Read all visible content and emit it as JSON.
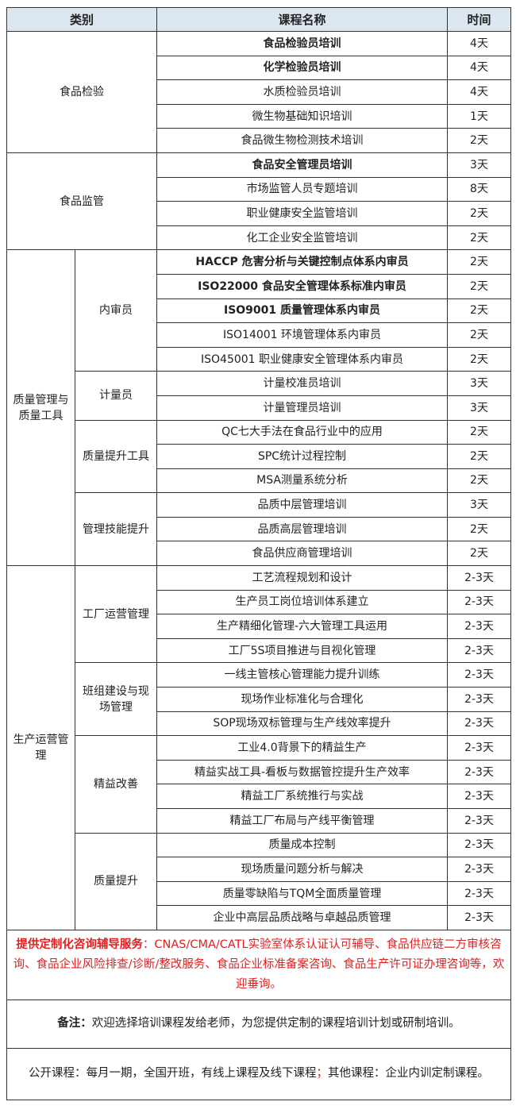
{
  "header": {
    "category": "类别",
    "course": "课程名称",
    "time": "时间"
  },
  "groups": [
    {
      "name": "食品检验",
      "subs": [
        {
          "name": "",
          "courses": [
            {
              "title": "食品检验员培训",
              "time": "4天",
              "bold": true
            },
            {
              "title": "化学检验员培训",
              "time": "4天",
              "bold": true
            },
            {
              "title": "水质检验员培训",
              "time": "4天"
            },
            {
              "title": "微生物基础知识培训",
              "time": "1天"
            },
            {
              "title": "食品微生物检测技术培训",
              "time": "2天"
            }
          ]
        }
      ]
    },
    {
      "name": "食品监管",
      "subs": [
        {
          "name": "",
          "courses": [
            {
              "title": "食品安全管理员培训",
              "time": "3天",
              "bold": true
            },
            {
              "title": "市场监管人员专题培训",
              "time": "8天"
            },
            {
              "title": "职业健康安全监管培训",
              "time": "2天"
            },
            {
              "title": "化工企业安全监管培训",
              "time": "2天"
            }
          ]
        }
      ]
    },
    {
      "name": "质量管理与质量工具",
      "subs": [
        {
          "name": "内审员",
          "courses": [
            {
              "title": "HACCP 危害分析与关键控制点体系内审员",
              "time": "2天",
              "bold": true
            },
            {
              "title": "ISO22000 食品安全管理体系标准内审员",
              "time": "2天",
              "bold": true
            },
            {
              "title": "ISO9001 质量管理体系内审员",
              "time": "2天",
              "bold": true
            },
            {
              "title": "ISO14001 环境管理体系内审员",
              "time": "2天"
            },
            {
              "title": "ISO45001 职业健康安全管理体系内审员",
              "time": "2天"
            }
          ]
        },
        {
          "name": "计量员",
          "courses": [
            {
              "title": "计量校准员培训",
              "time": "3天"
            },
            {
              "title": "计量管理员培训",
              "time": "3天"
            }
          ]
        },
        {
          "name": "质量提升工具",
          "courses": [
            {
              "title": "QC七大手法在食品行业中的应用",
              "time": "2天"
            },
            {
              "title": "SPC统计过程控制",
              "time": "2天"
            },
            {
              "title": "MSA测量系统分析",
              "time": "2天"
            }
          ]
        },
        {
          "name": "管理技能提升",
          "courses": [
            {
              "title": "品质中层管理培训",
              "time": "3天"
            },
            {
              "title": "品质高层管理培训",
              "time": "2天"
            },
            {
              "title": "食品供应商管理培训",
              "time": "2天"
            }
          ]
        }
      ]
    },
    {
      "name": "生产运营管理",
      "subs": [
        {
          "name": "工厂运营管理",
          "courses": [
            {
              "title": "工艺流程规划和设计",
              "time": "2-3天"
            },
            {
              "title": "生产员工岗位培训体系建立",
              "time": "2-3天"
            },
            {
              "title": "生产精细化管理-六大管理工具运用",
              "time": "2-3天"
            },
            {
              "title": "工厂5S项目推进与目视化管理",
              "time": "2-3天"
            }
          ]
        },
        {
          "name": "班组建设与现场管理",
          "courses": [
            {
              "title": "一线主管核心管理能力提升训练",
              "time": "2-3天"
            },
            {
              "title": "现场作业标准化与合理化",
              "time": "2-3天"
            },
            {
              "title": "SOP现场双标管理与生产线效率提升",
              "time": "2-3天"
            }
          ]
        },
        {
          "name": "精益改善",
          "courses": [
            {
              "title": "工业4.0背景下的精益生产",
              "time": "2-3天"
            },
            {
              "title": "精益实战工具-看板与数据管控提升生产效率",
              "time": "2-3天"
            },
            {
              "title": "精益工厂系统推行与实战",
              "time": "2-3天"
            },
            {
              "title": "精益工厂布局与产线平衡管理",
              "time": "2-3天"
            }
          ]
        },
        {
          "name": "质量提升",
          "courses": [
            {
              "title": "质量成本控制",
              "time": "2-3天"
            },
            {
              "title": "现场质量问题分析与解决",
              "time": "2-3天"
            },
            {
              "title": "质量零缺陷与TQM全面质量管理",
              "time": "2-3天"
            },
            {
              "title": "企业中高层品质战略与卓越品质管理",
              "time": "2-3天"
            }
          ]
        }
      ]
    }
  ],
  "services": {
    "label": "提供定制化咨询辅导服务",
    "text": "：CNAS/CMA/CATL实验室体系认证认可辅导、食品供应链二方审核咨询、食品企业风险排查/诊断/整改服务、食品企业标准备案咨询、食品生产许可证办理咨询等，欢迎垂询。"
  },
  "note": {
    "label": "备注：",
    "text": "欢迎选择培训课程发给老师，为您提供定制的课程培训计划或研制培训。"
  },
  "public": {
    "part1": "公开课程：每月一期，全国开班，有线上课程及线下课程",
    "sep": "；",
    "part2": "其他课程：企业内训定制课程。"
  },
  "colors": {
    "header_bg": "#dce6f1",
    "accent_red": "#e02020"
  }
}
